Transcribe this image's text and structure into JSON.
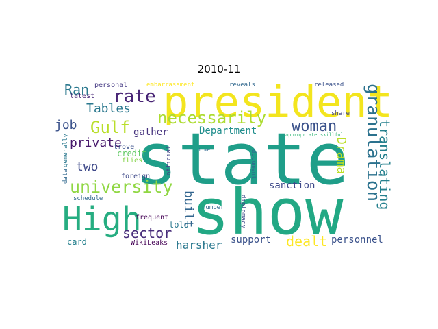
{
  "title": "2010-11",
  "words": {
    "president": "president",
    "state": "state",
    "show": "show",
    "high": "High",
    "university": "university",
    "gulf": "Gulf",
    "necessarily": "necessarily",
    "rate": "rate",
    "tables": "Tables",
    "ran": "Ran",
    "woman": "woman",
    "granulation": "granulation",
    "translating": "translating",
    "drama": "Drama",
    "built": "built",
    "dealt": "dealt",
    "job": "job",
    "private": "private",
    "two": "two",
    "sector": "sector",
    "harsher": "harsher",
    "support": "support",
    "personnel": "personnel",
    "sanction": "sanction",
    "department": "Department",
    "gather": "gather",
    "credit": "credit",
    "flies": "flies",
    "foreign": "foreign",
    "told": "told",
    "card": "card",
    "frequent": "frequent",
    "wikileaks": "WikiLeaks",
    "schedule": "schedule",
    "data": "data",
    "generally": "generally",
    "trove": "trove",
    "latest": "latest",
    "personal": "personal",
    "embarrassment": "embarrassment",
    "reveals": "reveals",
    "released": "released",
    "share": "share",
    "appropriate": "appropriate",
    "skillful": "skillful",
    "official": "official",
    "time": "time",
    "document": "document",
    "number": "number",
    "diplomacy": "diplomacy"
  }
}
